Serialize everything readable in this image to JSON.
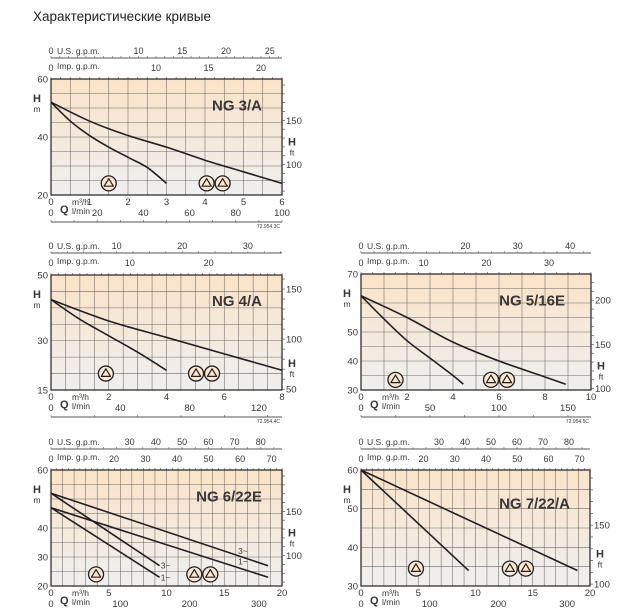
{
  "page": {
    "title": "Характеристические кривые"
  },
  "colors": {
    "plot_top": "#fbe3c8",
    "plot_bottom": "#efefef",
    "grid": "#6b6b6b",
    "curve": "#231f20",
    "frame": "#231f20"
  },
  "axis_labels": {
    "us_gpm": "U.S. g.p.m.",
    "imp_gpm": "Imp. g.p.m.",
    "h": "H",
    "m": "m",
    "ft": "ft",
    "q": "Q",
    "m3h": "m³/h",
    "lmin": "l/min"
  },
  "icons": {
    "single_pump": "pump-triangle-circle-icon",
    "double_pump": "double-pump-triangle-circle-icon"
  },
  "chart_data": [
    {
      "type": "line",
      "title": "NG 3/A",
      "code": "72.954.3C",
      "xlabel": "Q m³/h",
      "ylabel": "H m",
      "xlim": [
        0,
        6
      ],
      "ylim": [
        20,
        60
      ],
      "x_ticks": [
        "0",
        "1",
        "2",
        "3",
        "4",
        "5",
        "6"
      ],
      "y_ticks_m": [
        "20",
        "40",
        "60"
      ],
      "y_ticks_m_values": [
        20,
        40,
        60
      ],
      "y_ticks_ft": [
        "100",
        "150"
      ],
      "y_ticks_ft_values": [
        100,
        150
      ],
      "lmin_ticks": [
        "0",
        "20",
        "40",
        "60",
        "80",
        "100"
      ],
      "lmin_values": [
        0,
        20,
        40,
        60,
        80,
        100
      ],
      "us_gpm_ticks": [
        "0",
        "10",
        "15",
        "20",
        "25"
      ],
      "us_gpm_values": [
        0,
        10,
        15,
        20,
        25
      ],
      "imp_gpm_ticks": [
        "0",
        "10",
        "15",
        "20"
      ],
      "imp_gpm_values": [
        0,
        10,
        15,
        20
      ],
      "series": [
        {
          "name": "single pump",
          "x": [
            0,
            0.5,
            1,
            1.5,
            2,
            2.5,
            3
          ],
          "y": [
            52,
            45.5,
            40.5,
            36.5,
            33,
            29.5,
            24
          ]
        },
        {
          "name": "two pumps",
          "x": [
            0,
            1,
            2,
            3,
            4,
            5,
            6
          ],
          "y": [
            52,
            45.5,
            40.5,
            36.5,
            32,
            28,
            24
          ]
        }
      ],
      "markers": [
        {
          "kind": "single",
          "x": 1.5,
          "y": 24
        },
        {
          "kind": "double",
          "x": 4.25,
          "y": 24
        }
      ],
      "curve_labels": []
    },
    {
      "type": "line",
      "title": "NG 4/A",
      "code": "72.954.4C",
      "xlabel": "Q m³/h",
      "ylabel": "H m",
      "xlim": [
        0,
        8
      ],
      "ylim": [
        15,
        50
      ],
      "x_ticks": [
        "0",
        "2",
        "4",
        "6",
        "8"
      ],
      "y_ticks_m": [
        "15",
        "30",
        "50"
      ],
      "y_ticks_m_values": [
        15,
        30,
        50
      ],
      "y_ticks_ft": [
        "50",
        "100",
        "150"
      ],
      "y_ticks_ft_values": [
        50,
        100,
        150
      ],
      "lmin_ticks": [
        "0",
        "40",
        "80",
        "120"
      ],
      "lmin_values": [
        0,
        40,
        80,
        120
      ],
      "us_gpm_ticks": [
        "0",
        "10",
        "20",
        "30"
      ],
      "us_gpm_values": [
        0,
        10,
        20,
        30
      ],
      "imp_gpm_ticks": [
        "0",
        "10",
        "20"
      ],
      "imp_gpm_values": [
        0,
        10,
        20
      ],
      "series": [
        {
          "name": "single pump",
          "x": [
            0,
            1,
            2,
            3,
            4
          ],
          "y": [
            42.5,
            36.5,
            31.5,
            26.5,
            21
          ]
        },
        {
          "name": "two pumps",
          "x": [
            0,
            2,
            4,
            6,
            8
          ],
          "y": [
            42.5,
            36,
            31,
            26,
            21
          ]
        }
      ],
      "markers": [
        {
          "kind": "single",
          "x": 1.9,
          "y": 20
        },
        {
          "kind": "double",
          "x": 5.3,
          "y": 20
        }
      ],
      "curve_labels": []
    },
    {
      "type": "line",
      "title": "NG 5/16E",
      "code": "72.954.5C",
      "xlabel": "Q m³/h",
      "ylabel": "H m",
      "xlim": [
        0,
        10
      ],
      "ylim": [
        30,
        70
      ],
      "x_ticks": [
        "0",
        "2",
        "4",
        "6",
        "8",
        "10"
      ],
      "y_ticks_m": [
        "30",
        "40",
        "50",
        "70"
      ],
      "y_ticks_m_values": [
        30,
        40,
        50,
        70
      ],
      "y_ticks_ft": [
        "100",
        "150",
        "200"
      ],
      "y_ticks_ft_values": [
        100,
        150,
        200
      ],
      "lmin_ticks": [
        "0",
        "50",
        "100",
        "150"
      ],
      "lmin_values": [
        0,
        50,
        100,
        150
      ],
      "us_gpm_ticks": [
        "0",
        "20",
        "30",
        "40"
      ],
      "us_gpm_values": [
        0,
        20,
        30,
        40
      ],
      "imp_gpm_ticks": [
        "0",
        "10",
        "20",
        "30"
      ],
      "imp_gpm_values": [
        0,
        10,
        20,
        30
      ],
      "series": [
        {
          "name": "single pump",
          "x": [
            0,
            1,
            2,
            3,
            4,
            4.45
          ],
          "y": [
            62.5,
            54.5,
            47,
            41,
            35,
            32
          ]
        },
        {
          "name": "two pumps",
          "x": [
            0,
            2,
            4,
            6,
            8,
            8.9
          ],
          "y": [
            62.5,
            55,
            46.5,
            40,
            34.5,
            32
          ]
        }
      ],
      "markers": [
        {
          "kind": "single",
          "x": 1.5,
          "y": 33.5
        },
        {
          "kind": "double",
          "x": 6.0,
          "y": 33.5
        }
      ],
      "curve_labels": []
    },
    {
      "type": "line",
      "title": "NG 6/22E",
      "code": "",
      "xlabel": "Q m³/h",
      "ylabel": "H m",
      "xlim": [
        0,
        20
      ],
      "ylim": [
        20,
        60
      ],
      "x_ticks": [
        "0",
        "5",
        "10",
        "15",
        "20"
      ],
      "y_ticks_m": [
        "20",
        "30",
        "40",
        "60"
      ],
      "y_ticks_m_values": [
        20,
        30,
        40,
        60
      ],
      "y_ticks_ft": [
        "100",
        "150"
      ],
      "y_ticks_ft_values": [
        100,
        150
      ],
      "lmin_ticks": [
        "0",
        "100",
        "200",
        "300"
      ],
      "lmin_values": [
        0,
        100,
        200,
        300
      ],
      "us_gpm_ticks": [
        "0",
        "30",
        "40",
        "50",
        "60",
        "70",
        "80"
      ],
      "us_gpm_values": [
        0,
        30,
        40,
        50,
        60,
        70,
        80
      ],
      "imp_gpm_ticks": [
        "0",
        "20",
        "30",
        "40",
        "50",
        "60",
        "70"
      ],
      "imp_gpm_values": [
        0,
        20,
        30,
        40,
        50,
        60,
        70
      ],
      "series": [
        {
          "name": "single pump 3~",
          "x": [
            0,
            9.4
          ],
          "y": [
            52,
            27
          ]
        },
        {
          "name": "single pump 1~",
          "x": [
            0,
            9.4
          ],
          "y": [
            47,
            23
          ]
        },
        {
          "name": "two pumps 3~",
          "x": [
            0,
            18.8
          ],
          "y": [
            52,
            27
          ]
        },
        {
          "name": "two pumps 1~",
          "x": [
            0,
            18.8
          ],
          "y": [
            47,
            23
          ]
        }
      ],
      "markers": [
        {
          "kind": "single",
          "x": 3.9,
          "y": 24
        },
        {
          "kind": "double",
          "x": 13.1,
          "y": 24
        }
      ],
      "curve_labels": [
        {
          "text": "3~",
          "x": 9.5,
          "y": 27
        },
        {
          "text": "1~",
          "x": 9.5,
          "y": 23
        },
        {
          "text": "3~",
          "x": 16.2,
          "y": 32
        },
        {
          "text": "1~",
          "x": 16.2,
          "y": 28.5
        }
      ]
    },
    {
      "type": "line",
      "title": "NG 7/22/A",
      "code": "",
      "xlabel": "Q m³/h",
      "ylabel": "H m",
      "xlim": [
        0,
        20
      ],
      "ylim": [
        30,
        60
      ],
      "x_ticks": [
        "0",
        "5",
        "10",
        "15",
        "20"
      ],
      "y_ticks_m": [
        "30",
        "40",
        "50",
        "60"
      ],
      "y_ticks_m_values": [
        30,
        40,
        50,
        60
      ],
      "y_ticks_ft": [
        "100",
        "150"
      ],
      "y_ticks_ft_values": [
        100,
        150
      ],
      "lmin_ticks": [
        "0",
        "100",
        "200",
        "300"
      ],
      "lmin_values": [
        0,
        100,
        200,
        300
      ],
      "us_gpm_ticks": [
        "0",
        "30",
        "40",
        "50",
        "60",
        "70",
        "80"
      ],
      "us_gpm_values": [
        0,
        30,
        40,
        50,
        60,
        70,
        80
      ],
      "imp_gpm_ticks": [
        "0",
        "20",
        "30",
        "40",
        "50",
        "60",
        "70"
      ],
      "imp_gpm_values": [
        0,
        20,
        30,
        40,
        50,
        60,
        70
      ],
      "series": [
        {
          "name": "single pump",
          "x": [
            0,
            9.4
          ],
          "y": [
            60,
            34
          ]
        },
        {
          "name": "two pumps",
          "x": [
            0,
            18.9
          ],
          "y": [
            60,
            34
          ]
        }
      ],
      "markers": [
        {
          "kind": "single",
          "x": 4.8,
          "y": 34.5
        },
        {
          "kind": "double",
          "x": 13.7,
          "y": 34.5
        }
      ],
      "curve_labels": []
    }
  ]
}
